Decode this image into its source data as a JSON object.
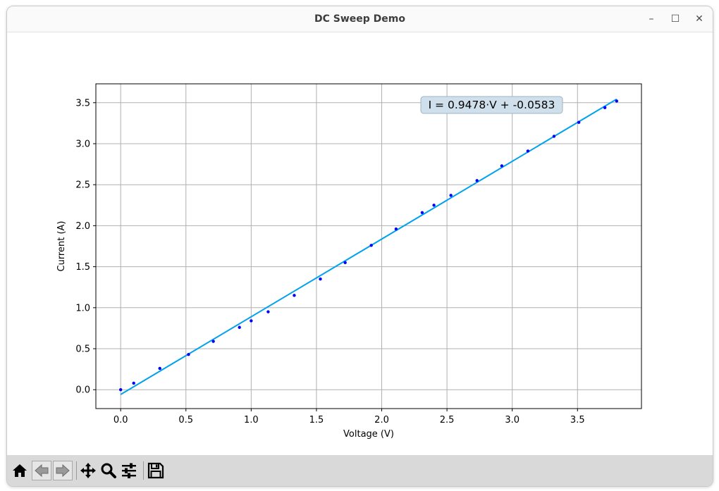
{
  "window": {
    "title": "DC Sweep Demo",
    "controls": {
      "minimize": "–",
      "maximize": "☐",
      "close": "✕"
    }
  },
  "toolbar": {
    "buttons": [
      {
        "name": "home",
        "icon": "home-icon"
      },
      {
        "name": "back",
        "icon": "left-arrow-icon"
      },
      {
        "name": "forward",
        "icon": "right-arrow-icon"
      },
      {
        "name": "pan",
        "icon": "move-icon"
      },
      {
        "name": "zoom",
        "icon": "magnifier-icon"
      },
      {
        "name": "configure-subplots",
        "icon": "sliders-icon"
      },
      {
        "name": "save",
        "icon": "floppy-disk-icon"
      }
    ]
  },
  "colors": {
    "points": "#0000ff",
    "fit_line": "#00a2ee",
    "annotation_bg": "#cfe0ec",
    "grid": "#b0b0b0"
  },
  "chart_data": {
    "type": "scatter",
    "title": "",
    "xlabel": "Voltage (V)",
    "ylabel": "Current (A)",
    "xlim": [
      -0.19,
      3.99
    ],
    "ylim": [
      -0.23,
      3.73
    ],
    "xticks": [
      0.0,
      0.5,
      1.0,
      1.5,
      2.0,
      2.5,
      3.0,
      3.5
    ],
    "xtick_labels": [
      "0.0",
      "0.5",
      "1.0",
      "1.5",
      "2.0",
      "2.5",
      "3.0",
      "3.5"
    ],
    "yticks": [
      0.0,
      0.5,
      1.0,
      1.5,
      2.0,
      2.5,
      3.0,
      3.5
    ],
    "ytick_labels": [
      "0.0",
      "0.5",
      "1.0",
      "1.5",
      "2.0",
      "2.5",
      "3.0",
      "3.5"
    ],
    "grid": true,
    "annotation": "I = 0.9478·V + -0.0583",
    "fit": {
      "slope": 0.9478,
      "intercept": -0.0583,
      "x_range": [
        0.0,
        3.8
      ]
    },
    "series": [
      {
        "x": [
          0.0,
          0.1,
          0.3,
          0.52,
          0.71,
          0.91,
          1.0,
          1.13,
          1.33,
          1.53,
          1.72,
          1.92,
          2.11,
          2.31,
          2.4,
          2.53,
          2.73,
          2.92,
          3.12,
          3.32,
          3.51,
          3.71,
          3.8
        ],
        "y": [
          0.0,
          0.08,
          0.26,
          0.43,
          0.59,
          0.76,
          0.84,
          0.95,
          1.15,
          1.35,
          1.55,
          1.76,
          1.96,
          2.16,
          2.25,
          2.37,
          2.55,
          2.73,
          2.91,
          3.09,
          3.26,
          3.44,
          3.52
        ]
      }
    ]
  }
}
